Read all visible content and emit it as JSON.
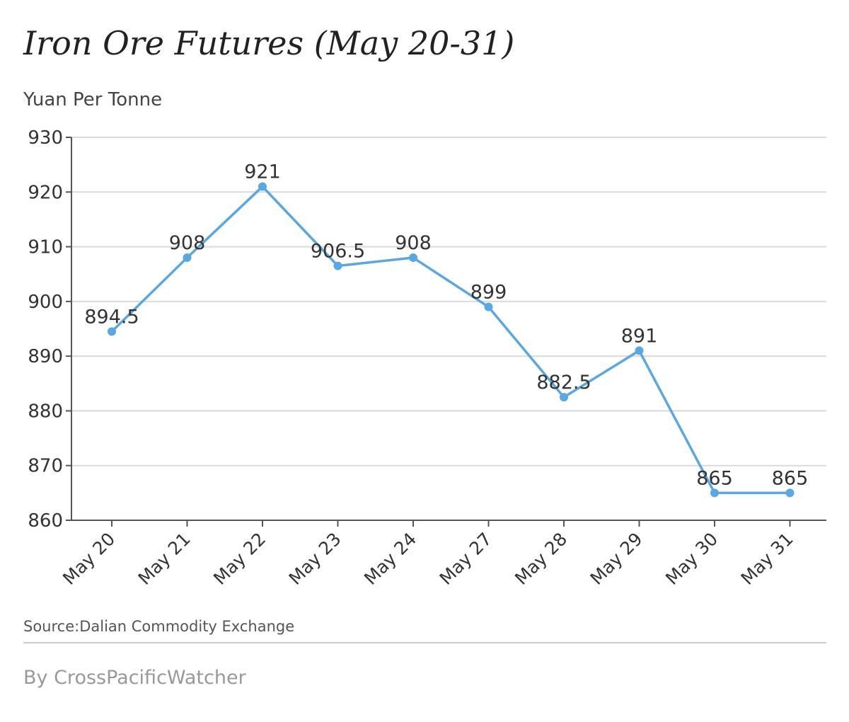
{
  "chart_data": {
    "type": "line",
    "title": "Iron Ore Futures (May 20-31)",
    "ylabel": "Yuan Per Tonne",
    "xlabel": "",
    "categories": [
      "May 20",
      "May 21",
      "May 22",
      "May 23",
      "May 24",
      "May 27",
      "May 28",
      "May 29",
      "May 30",
      "May 31"
    ],
    "series": [
      {
        "values": [
          894.5,
          908,
          921,
          906.5,
          908,
          899,
          882.5,
          891,
          865,
          865
        ],
        "data_labels": [
          "894.5",
          "908",
          "921",
          "906.5",
          "908",
          "899",
          "882.5",
          "891",
          "865",
          "865"
        ]
      }
    ],
    "ylim": [
      860,
      930
    ],
    "yticks": [
      860,
      870,
      880,
      890,
      900,
      910,
      920,
      930
    ],
    "grid": true,
    "legend": "none",
    "colors": {
      "line": "#5aa7e2",
      "grid": "#d9d9d9",
      "axis": "#555555"
    }
  },
  "footer": {
    "source": "Source:Dalian Commodity Exchange",
    "byline": "By CrossPacificWatcher"
  }
}
